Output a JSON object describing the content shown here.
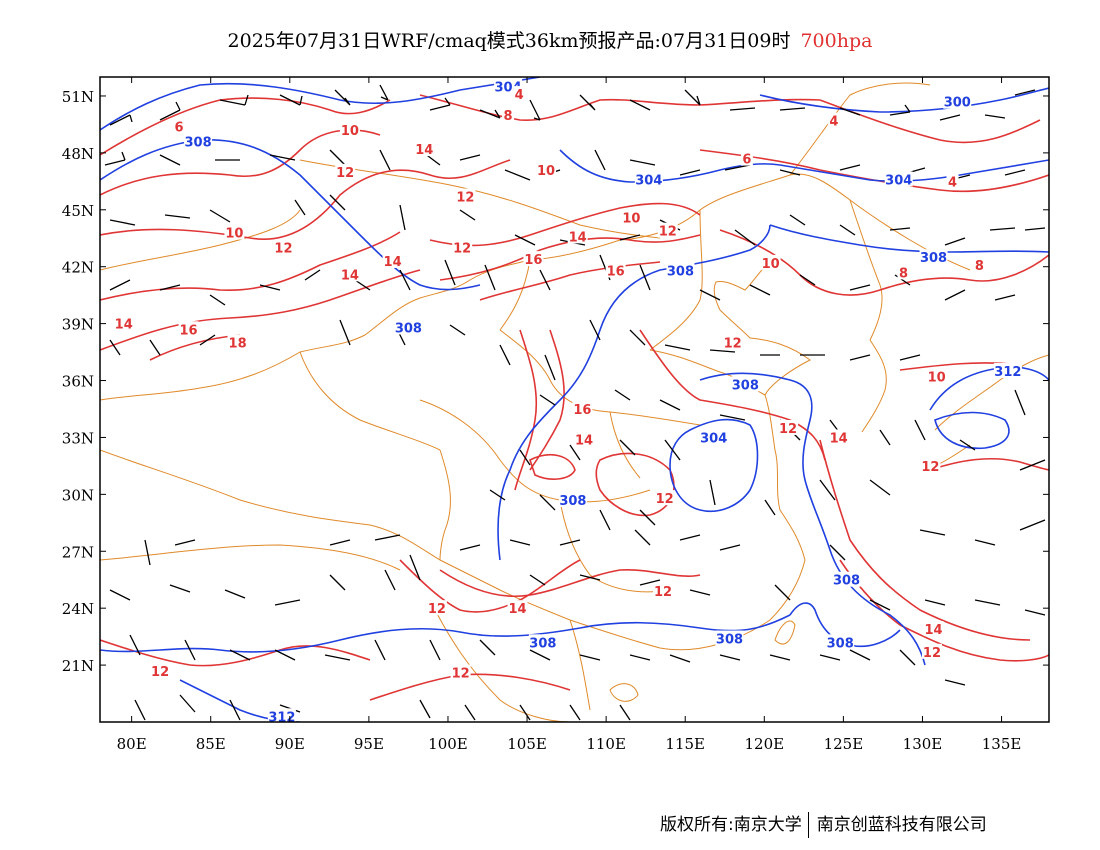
{
  "title": {
    "main": "2025年07月31日WRF/cmaq模式36km预报产品:07月31日09时",
    "level": "700hpa"
  },
  "colors": {
    "temperature": "#e03535",
    "geopotential": "#2040e0",
    "boundary": "#e08a2a",
    "wind": "#000000"
  },
  "axes": {
    "y_ticks": [
      "51N",
      "48N",
      "45N",
      "42N",
      "39N",
      "36N",
      "33N",
      "30N",
      "27N",
      "24N",
      "21N"
    ],
    "y_values": [
      51,
      48,
      45,
      42,
      39,
      36,
      33,
      30,
      27,
      24,
      21
    ],
    "x_ticks": [
      "80E",
      "85E",
      "90E",
      "95E",
      "100E",
      "105E",
      "110E",
      "115E",
      "120E",
      "125E",
      "130E",
      "135E"
    ],
    "x_values": [
      80,
      85,
      90,
      95,
      100,
      105,
      110,
      115,
      120,
      125,
      130,
      135
    ],
    "lon_range": [
      78,
      138
    ],
    "lat_range": [
      18,
      52
    ]
  },
  "height_labels": [
    {
      "text": "304",
      "lon": 103.8,
      "lat": 51.5
    },
    {
      "text": "308",
      "lon": 84.2,
      "lat": 48.6
    },
    {
      "text": "304",
      "lon": 112.7,
      "lat": 46.6
    },
    {
      "text": "304",
      "lon": 128.5,
      "lat": 46.6
    },
    {
      "text": "300",
      "lon": 132.2,
      "lat": 50.7
    },
    {
      "text": "308",
      "lon": 114.7,
      "lat": 41.8
    },
    {
      "text": "308",
      "lon": 97.5,
      "lat": 38.8
    },
    {
      "text": "308",
      "lon": 130.7,
      "lat": 42.5
    },
    {
      "text": "308",
      "lon": 118.8,
      "lat": 35.8
    },
    {
      "text": "304",
      "lon": 116.8,
      "lat": 33.0
    },
    {
      "text": "308",
      "lon": 107.9,
      "lat": 29.7
    },
    {
      "text": "308",
      "lon": 106.0,
      "lat": 22.2
    },
    {
      "text": "308",
      "lon": 117.8,
      "lat": 22.4
    },
    {
      "text": "308",
      "lon": 124.8,
      "lat": 22.2
    },
    {
      "text": "308",
      "lon": 125.2,
      "lat": 25.5
    },
    {
      "text": "312",
      "lon": 135.4,
      "lat": 36.5
    },
    {
      "text": "312",
      "lon": 89.5,
      "lat": 18.3
    }
  ],
  "temperature_labels": [
    {
      "text": "6",
      "lon": 83.0,
      "lat": 49.4
    },
    {
      "text": "10",
      "lon": 93.8,
      "lat": 49.2
    },
    {
      "text": "8",
      "lon": 103.8,
      "lat": 50.0
    },
    {
      "text": "4",
      "lon": 104.5,
      "lat": 51.1
    },
    {
      "text": "14",
      "lon": 98.5,
      "lat": 48.2
    },
    {
      "text": "12",
      "lon": 93.5,
      "lat": 47.0
    },
    {
      "text": "10",
      "lon": 106.2,
      "lat": 47.1
    },
    {
      "text": "12",
      "lon": 101.1,
      "lat": 45.7
    },
    {
      "text": "10",
      "lon": 111.6,
      "lat": 44.6
    },
    {
      "text": "12",
      "lon": 113.9,
      "lat": 43.9
    },
    {
      "text": "14",
      "lon": 108.2,
      "lat": 43.6
    },
    {
      "text": "12",
      "lon": 100.9,
      "lat": 43.0
    },
    {
      "text": "10",
      "lon": 86.5,
      "lat": 43.8
    },
    {
      "text": "12",
      "lon": 89.6,
      "lat": 43.0
    },
    {
      "text": "16",
      "lon": 105.4,
      "lat": 42.4
    },
    {
      "text": "16",
      "lon": 110.6,
      "lat": 41.8
    },
    {
      "text": "14",
      "lon": 96.5,
      "lat": 42.3
    },
    {
      "text": "14",
      "lon": 93.8,
      "lat": 41.6
    },
    {
      "text": "14",
      "lon": 79.5,
      "lat": 39.0
    },
    {
      "text": "16",
      "lon": 83.6,
      "lat": 38.7
    },
    {
      "text": "18",
      "lon": 86.7,
      "lat": 38.0
    },
    {
      "text": "10",
      "lon": 120.4,
      "lat": 42.2
    },
    {
      "text": "8",
      "lon": 128.8,
      "lat": 41.7
    },
    {
      "text": "8",
      "lon": 133.6,
      "lat": 42.1
    },
    {
      "text": "4",
      "lon": 124.4,
      "lat": 49.7
    },
    {
      "text": "6",
      "lon": 118.9,
      "lat": 47.7
    },
    {
      "text": "4",
      "lon": 131.9,
      "lat": 46.5
    },
    {
      "text": "12",
      "lon": 118.0,
      "lat": 38.0
    },
    {
      "text": "10",
      "lon": 130.9,
      "lat": 36.2
    },
    {
      "text": "12",
      "lon": 121.5,
      "lat": 33.5
    },
    {
      "text": "14",
      "lon": 124.7,
      "lat": 33.0
    },
    {
      "text": "14",
      "lon": 108.6,
      "lat": 32.9
    },
    {
      "text": "16",
      "lon": 108.5,
      "lat": 34.5
    },
    {
      "text": "12",
      "lon": 113.7,
      "lat": 29.8
    },
    {
      "text": "12",
      "lon": 113.6,
      "lat": 24.9
    },
    {
      "text": "12",
      "lon": 99.3,
      "lat": 24.0
    },
    {
      "text": "14",
      "lon": 104.4,
      "lat": 24.0
    },
    {
      "text": "12",
      "lon": 100.8,
      "lat": 20.6
    },
    {
      "text": "12",
      "lon": 81.8,
      "lat": 20.7
    },
    {
      "text": "12",
      "lon": 130.5,
      "lat": 31.5
    },
    {
      "text": "14",
      "lon": 130.7,
      "lat": 22.9
    },
    {
      "text": "12",
      "lon": 130.6,
      "lat": 21.7
    }
  ],
  "footer": {
    "owner": "版权所有:南京大学",
    "company": "南京创蓝科技有限公司"
  }
}
